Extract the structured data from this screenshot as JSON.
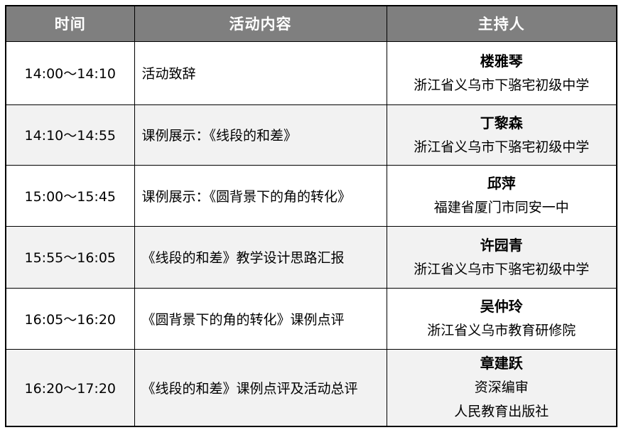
{
  "colors": {
    "header_bg": "#7f7f7f",
    "header_text": "#ffffff",
    "alt_row_bg": "#f2f2f2",
    "row_bg": "#ffffff",
    "border": "#000000",
    "body_text": "#000000"
  },
  "table": {
    "headers": [
      "时间",
      "活动内容",
      "主持人"
    ],
    "rows": [
      {
        "time": "14:00～14:10",
        "activity": "活动致辞",
        "host_name": "楼雅琴",
        "host_org": [
          "浙江省义乌市下骆宅初级中学"
        ]
      },
      {
        "time": "14:10～14:55",
        "activity": "课例展示：《线段的和差》",
        "host_name": "丁黎森",
        "host_org": [
          "浙江省义乌市下骆宅初级中学"
        ]
      },
      {
        "time": "15:00～15:45",
        "activity": "课例展示：《圆背景下的角的转化》",
        "host_name": "邱萍",
        "host_org": [
          "福建省厦门市同安一中"
        ]
      },
      {
        "time": "15:55～16:05",
        "activity": "《线段的和差》教学设计思路汇报",
        "host_name": "许园青",
        "host_org": [
          "浙江省义乌市下骆宅初级中学"
        ]
      },
      {
        "time": "16:05～16:20",
        "activity": "《圆背景下的角的转化》课例点评",
        "host_name": "吴仲玲",
        "host_org": [
          "浙江省义乌市教育研修院"
        ]
      },
      {
        "time": "16:20～17:20",
        "activity": "《线段的和差》课例点评及活动总评",
        "host_name": "章建跃",
        "host_org": [
          "资深编审",
          "人民教育出版社"
        ]
      }
    ]
  }
}
